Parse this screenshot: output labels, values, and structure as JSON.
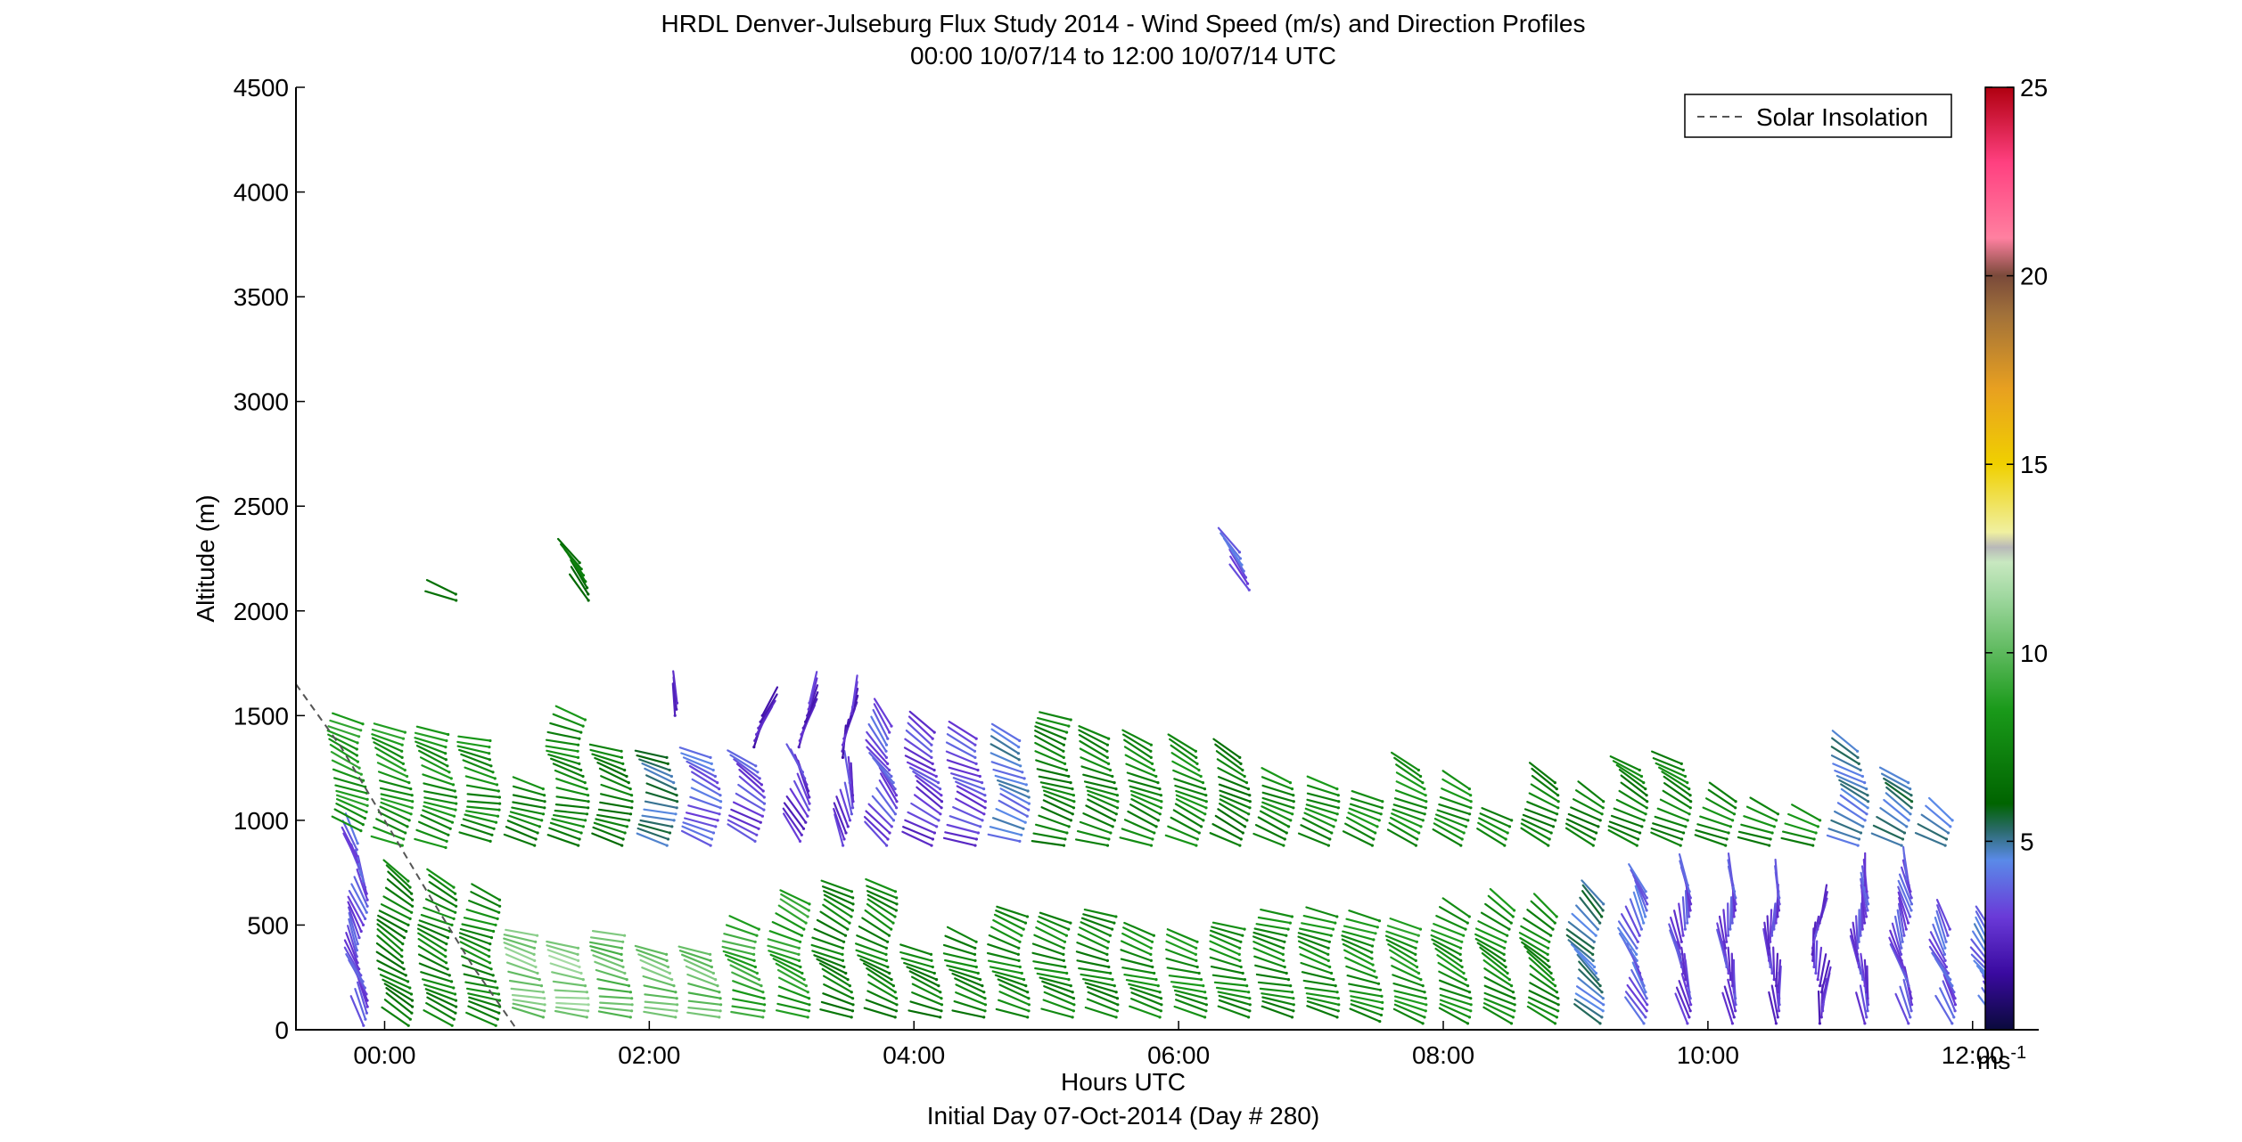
{
  "chart_data": {
    "type": "wind_barb_profile",
    "title": "HRDL Denver-Julseburg Flux Study 2014 - Wind Speed (m/s) and Direction Profiles",
    "subtitle": "00:00 10/07/14 to 12:00 10/07/14  UTC",
    "xlabel": "Hours UTC",
    "xlabel2": "Initial Day 07-Oct-2014 (Day # 280)",
    "ylabel": "Altitude (m)",
    "xlim": [
      -0.67,
      12.5
    ],
    "ylim": [
      0,
      4500
    ],
    "xticks": [
      0,
      2,
      4,
      6,
      8,
      10,
      12
    ],
    "xtick_labels": [
      "00:00",
      "02:00",
      "04:00",
      "06:00",
      "08:00",
      "10:00",
      "12:00"
    ],
    "yticks": [
      0,
      500,
      1000,
      1500,
      2000,
      2500,
      3000,
      3500,
      4000,
      4500
    ],
    "ytick_labels": [
      "0",
      "500",
      "1000",
      "1500",
      "2000",
      "2500",
      "3000",
      "3500",
      "4000",
      "4500"
    ],
    "legend": {
      "label": "Solar Insolation",
      "position": "top-right",
      "style": "dashed",
      "color": "#555555"
    },
    "colorbar": {
      "range": [
        0,
        25
      ],
      "ticks": [
        5,
        10,
        15,
        20,
        25
      ],
      "tick_labels": [
        "5",
        "10",
        "15",
        "20",
        "25"
      ],
      "unit_base": "ms",
      "unit_exp": "-1",
      "stops": [
        {
          "v": 0,
          "c": "#0a0a3c"
        },
        {
          "v": 1.5,
          "c": "#3a0aa0"
        },
        {
          "v": 3,
          "c": "#6a3ad8"
        },
        {
          "v": 4.5,
          "c": "#5a8ae8"
        },
        {
          "v": 5.3,
          "c": "#2a6a6a"
        },
        {
          "v": 6,
          "c": "#006400"
        },
        {
          "v": 8.5,
          "c": "#1a9a1a"
        },
        {
          "v": 11.5,
          "c": "#a0d8a0"
        },
        {
          "v": 12.4,
          "c": "#c8e8c0"
        },
        {
          "v": 12.8,
          "c": "#b8b8b8"
        },
        {
          "v": 13.2,
          "c": "#f0f0a0"
        },
        {
          "v": 15,
          "c": "#f0d000"
        },
        {
          "v": 17,
          "c": "#e8a020"
        },
        {
          "v": 19,
          "c": "#a0703a"
        },
        {
          "v": 20,
          "c": "#7a4a3a"
        },
        {
          "v": 21,
          "c": "#ff80a0"
        },
        {
          "v": 23,
          "c": "#ff4080"
        },
        {
          "v": 25,
          "c": "#b00010"
        }
      ]
    },
    "solar_insolation": {
      "x": [
        -0.67,
        -0.33,
        0,
        0.33,
        0.67,
        1.0
      ],
      "y": [
        1650,
        1350,
        1000,
        650,
        300,
        0
      ]
    },
    "profiles": [
      {
        "t": -0.17,
        "layers": [
          {
            "z0": 20,
            "z1": 900,
            "spd": 3.2,
            "dir": 335
          },
          {
            "z0": 950,
            "z1": 1470,
            "spd": 8.2,
            "dir": 290
          }
        ]
      },
      {
        "t": 0.17,
        "layers": [
          {
            "z0": 20,
            "z1": 720,
            "spd": 6.8,
            "dir": 300
          },
          {
            "z0": 880,
            "z1": 1440,
            "spd": 8.0,
            "dir": 288
          }
        ]
      },
      {
        "t": 0.5,
        "layers": [
          {
            "z0": 20,
            "z1": 680,
            "spd": 7.2,
            "dir": 292
          },
          {
            "z0": 870,
            "z1": 1430,
            "spd": 7.8,
            "dir": 286
          },
          {
            "z0": 2050,
            "z1": 2090,
            "spd": 6.0,
            "dir": 290
          }
        ]
      },
      {
        "t": 0.83,
        "layers": [
          {
            "z0": 20,
            "z1": 620,
            "spd": 7.4,
            "dir": 286
          },
          {
            "z0": 900,
            "z1": 1400,
            "spd": 7.6,
            "dir": 280
          }
        ]
      },
      {
        "t": 1.17,
        "layers": [
          {
            "z0": 60,
            "z1": 470,
            "spd": 10.5,
            "dir": 282
          },
          {
            "z0": 880,
            "z1": 1150,
            "spd": 7.2,
            "dir": 284
          }
        ]
      },
      {
        "t": 1.5,
        "layers": [
          {
            "z0": 60,
            "z1": 400,
            "spd": 10.8,
            "dir": 278
          },
          {
            "z0": 880,
            "z1": 1500,
            "spd": 7.4,
            "dir": 282
          },
          {
            "z0": 2050,
            "z1": 2250,
            "spd": 6.5,
            "dir": 320
          }
        ]
      },
      {
        "t": 1.83,
        "layers": [
          {
            "z0": 60,
            "z1": 460,
            "spd": 9.8,
            "dir": 280
          },
          {
            "z0": 880,
            "z1": 1330,
            "spd": 6.8,
            "dir": 284
          }
        ]
      },
      {
        "t": 2.17,
        "layers": [
          {
            "z0": 60,
            "z1": 380,
            "spd": 10.2,
            "dir": 282
          },
          {
            "z0": 880,
            "z1": 1320,
            "spd": 5.0,
            "dir": 284
          },
          {
            "z0": 1500,
            "z1": 1560,
            "spd": 2.5,
            "dir": 350
          }
        ]
      },
      {
        "t": 2.5,
        "layers": [
          {
            "z0": 60,
            "z1": 370,
            "spd": 10.0,
            "dir": 283
          },
          {
            "z0": 880,
            "z1": 1300,
            "spd": 3.5,
            "dir": 290
          }
        ]
      },
      {
        "t": 2.83,
        "layers": [
          {
            "z0": 60,
            "z1": 500,
            "spd": 8.8,
            "dir": 286
          },
          {
            "z0": 900,
            "z1": 1280,
            "spd": 3.0,
            "dir": 300
          },
          {
            "z0": 1350,
            "z1": 1500,
            "spd": 2.0,
            "dir": 20
          }
        ]
      },
      {
        "t": 3.17,
        "layers": [
          {
            "z0": 60,
            "z1": 600,
            "spd": 8.4,
            "dir": 290
          },
          {
            "z0": 900,
            "z1": 1250,
            "spd": 2.6,
            "dir": 330
          },
          {
            "z0": 1350,
            "z1": 1560,
            "spd": 2.2,
            "dir": 15
          }
        ]
      },
      {
        "t": 3.5,
        "layers": [
          {
            "z0": 60,
            "z1": 680,
            "spd": 7.0,
            "dir": 292
          },
          {
            "z0": 880,
            "z1": 1200,
            "spd": 2.8,
            "dir": 345
          },
          {
            "z0": 1300,
            "z1": 1550,
            "spd": 2.2,
            "dir": 10
          }
        ]
      },
      {
        "t": 3.83,
        "layers": [
          {
            "z0": 60,
            "z1": 660,
            "spd": 7.2,
            "dir": 294
          },
          {
            "z0": 880,
            "z1": 1450,
            "spd": 3.2,
            "dir": 320
          }
        ]
      },
      {
        "t": 4.17,
        "layers": [
          {
            "z0": 60,
            "z1": 380,
            "spd": 7.0,
            "dir": 288
          },
          {
            "z0": 880,
            "z1": 1420,
            "spd": 2.8,
            "dir": 300
          }
        ]
      },
      {
        "t": 4.5,
        "layers": [
          {
            "z0": 60,
            "z1": 440,
            "spd": 7.2,
            "dir": 286
          },
          {
            "z0": 880,
            "z1": 1400,
            "spd": 3.0,
            "dir": 290
          }
        ]
      },
      {
        "t": 4.83,
        "layers": [
          {
            "z0": 60,
            "z1": 560,
            "spd": 7.5,
            "dir": 286
          },
          {
            "z0": 900,
            "z1": 1380,
            "spd": 4.2,
            "dir": 290
          }
        ]
      },
      {
        "t": 5.17,
        "layers": [
          {
            "z0": 60,
            "z1": 520,
            "spd": 7.4,
            "dir": 284
          },
          {
            "z0": 880,
            "z1": 1500,
            "spd": 7.0,
            "dir": 286
          }
        ]
      },
      {
        "t": 5.5,
        "layers": [
          {
            "z0": 60,
            "z1": 540,
            "spd": 7.2,
            "dir": 284
          },
          {
            "z0": 880,
            "z1": 1400,
            "spd": 7.2,
            "dir": 288
          }
        ]
      },
      {
        "t": 5.83,
        "layers": [
          {
            "z0": 60,
            "z1": 460,
            "spd": 7.6,
            "dir": 284
          },
          {
            "z0": 880,
            "z1": 1360,
            "spd": 7.4,
            "dir": 290
          }
        ]
      },
      {
        "t": 6.17,
        "layers": [
          {
            "z0": 60,
            "z1": 440,
            "spd": 7.8,
            "dir": 282
          },
          {
            "z0": 880,
            "z1": 1340,
            "spd": 7.6,
            "dir": 292
          }
        ]
      },
      {
        "t": 6.5,
        "layers": [
          {
            "z0": 60,
            "z1": 480,
            "spd": 7.6,
            "dir": 282
          },
          {
            "z0": 880,
            "z1": 1320,
            "spd": 6.8,
            "dir": 294
          },
          {
            "z0": 2100,
            "z1": 2290,
            "spd": 3.5,
            "dir": 320
          }
        ]
      },
      {
        "t": 6.83,
        "layers": [
          {
            "z0": 60,
            "z1": 560,
            "spd": 7.4,
            "dir": 282
          },
          {
            "z0": 880,
            "z1": 1200,
            "spd": 7.4,
            "dir": 290
          }
        ]
      },
      {
        "t": 7.17,
        "layers": [
          {
            "z0": 60,
            "z1": 560,
            "spd": 7.6,
            "dir": 284
          },
          {
            "z0": 880,
            "z1": 1170,
            "spd": 7.6,
            "dir": 288
          }
        ]
      },
      {
        "t": 7.5,
        "layers": [
          {
            "z0": 40,
            "z1": 520,
            "spd": 7.8,
            "dir": 286
          },
          {
            "z0": 880,
            "z1": 1100,
            "spd": 7.8,
            "dir": 290
          }
        ]
      },
      {
        "t": 7.83,
        "layers": [
          {
            "z0": 30,
            "z1": 480,
            "spd": 8.0,
            "dir": 290
          },
          {
            "z0": 880,
            "z1": 1250,
            "spd": 7.8,
            "dir": 292
          }
        ]
      },
      {
        "t": 8.17,
        "layers": [
          {
            "z0": 30,
            "z1": 540,
            "spd": 7.8,
            "dir": 294
          },
          {
            "z0": 880,
            "z1": 1150,
            "spd": 7.6,
            "dir": 292
          }
        ]
      },
      {
        "t": 8.5,
        "layers": [
          {
            "z0": 30,
            "z1": 580,
            "spd": 7.6,
            "dir": 298
          },
          {
            "z0": 880,
            "z1": 1000,
            "spd": 7.4,
            "dir": 294
          }
        ]
      },
      {
        "t": 8.83,
        "layers": [
          {
            "z0": 30,
            "z1": 560,
            "spd": 7.4,
            "dir": 302
          },
          {
            "z0": 880,
            "z1": 1200,
            "spd": 7.0,
            "dir": 296
          }
        ]
      },
      {
        "t": 9.17,
        "layers": [
          {
            "z0": 30,
            "z1": 620,
            "spd": 4.8,
            "dir": 310
          },
          {
            "z0": 880,
            "z1": 1100,
            "spd": 6.8,
            "dir": 298
          }
        ]
      },
      {
        "t": 9.5,
        "layers": [
          {
            "z0": 30,
            "z1": 660,
            "spd": 3.6,
            "dir": 330
          },
          {
            "z0": 880,
            "z1": 1250,
            "spd": 7.0,
            "dir": 296
          }
        ]
      },
      {
        "t": 9.83,
        "layers": [
          {
            "z0": 30,
            "z1": 700,
            "spd": 3.0,
            "dir": 345
          },
          {
            "z0": 880,
            "z1": 1270,
            "spd": 7.2,
            "dir": 294
          }
        ]
      },
      {
        "t": 10.17,
        "layers": [
          {
            "z0": 30,
            "z1": 690,
            "spd": 3.0,
            "dir": 350
          },
          {
            "z0": 880,
            "z1": 1100,
            "spd": 7.4,
            "dir": 292
          }
        ]
      },
      {
        "t": 10.5,
        "layers": [
          {
            "z0": 30,
            "z1": 680,
            "spd": 2.8,
            "dir": 355
          },
          {
            "z0": 880,
            "z1": 1050,
            "spd": 7.4,
            "dir": 290
          }
        ]
      },
      {
        "t": 10.83,
        "layers": [
          {
            "z0": 30,
            "z1": 560,
            "spd": 2.6,
            "dir": 5
          },
          {
            "z0": 880,
            "z1": 1000,
            "spd": 7.6,
            "dir": 290
          }
        ]
      },
      {
        "t": 11.17,
        "layers": [
          {
            "z0": 30,
            "z1": 700,
            "spd": 3.0,
            "dir": 350
          },
          {
            "z0": 880,
            "z1": 1350,
            "spd": 4.5,
            "dir": 296
          }
        ]
      },
      {
        "t": 11.5,
        "layers": [
          {
            "z0": 30,
            "z1": 740,
            "spd": 3.2,
            "dir": 340
          },
          {
            "z0": 880,
            "z1": 1180,
            "spd": 4.8,
            "dir": 300
          }
        ]
      },
      {
        "t": 11.83,
        "layers": [
          {
            "z0": 30,
            "z1": 480,
            "spd": 3.4,
            "dir": 330
          },
          {
            "z0": 880,
            "z1": 1000,
            "spd": 4.6,
            "dir": 300
          }
        ]
      },
      {
        "t": 12.17,
        "layers": [
          {
            "z0": 40,
            "z1": 460,
            "spd": 3.8,
            "dir": 320
          }
        ]
      }
    ]
  }
}
